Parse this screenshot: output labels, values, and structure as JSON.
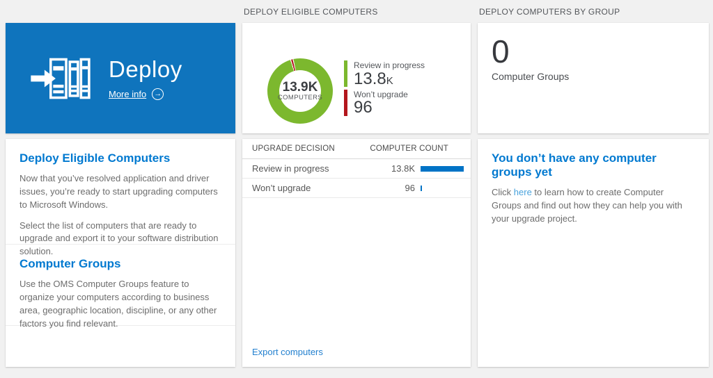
{
  "colors": {
    "tile_blue": "#0f74bd",
    "heading_blue": "#0079d0",
    "green": "#7cb82e",
    "red": "#b3161d",
    "bar_blue": "#0073c6",
    "gap_white": "#ffffff"
  },
  "left_column": {
    "tile": {
      "title": "Deploy",
      "more_info_label": "More info"
    },
    "sections": [
      {
        "heading": "Deploy Eligible Computers",
        "p1": "Now that you’ve resolved application and driver issues, you’re ready to start upgrading computers to Microsoft Windows.",
        "p2": "Select the list of computers that are ready to upgrade and export it to your software distribution solution."
      },
      {
        "heading": "Computer Groups",
        "p1": "Use the OMS Computer Groups feature to organize your computers according to business area, geographic location, discipline, or any other factors you find relevant."
      }
    ]
  },
  "middle_column": {
    "header": "DEPLOY ELIGIBLE COMPUTERS",
    "donut": {
      "center_value": "13.9K",
      "center_label": "COMPUTERS",
      "slice": {
        "green_end": 342.5,
        "red_start": 344,
        "red_end": 346.8,
        "green_resume": 348.3
      },
      "legend": [
        {
          "label": "Review in progress",
          "value": "13.8",
          "suffix": "K",
          "color": "#7cb82e"
        },
        {
          "label": "Won’t upgrade",
          "value": "96",
          "suffix": "",
          "color": "#b3161d"
        }
      ]
    },
    "table": {
      "bar_color": "#0073c6",
      "header_left": "UPGRADE DECISION",
      "header_right": "COMPUTER COUNT",
      "rows": [
        {
          "label": "Review in progress",
          "count": "13.8K",
          "bar_pct": 100
        },
        {
          "label": "Won’t upgrade",
          "count": "96",
          "bar_pct": 0.7
        }
      ]
    },
    "export_link": "Export computers"
  },
  "right_column": {
    "header": "DEPLOY COMPUTERS BY GROUP",
    "tile": {
      "value": "0",
      "label": "Computer Groups"
    },
    "empty_state": {
      "heading": "You don’t have any computer groups yet",
      "body_prefix": "Click ",
      "link_text": "here",
      "body_suffix": " to learn how to create Computer Groups and find out how they can help you with your upgrade project."
    }
  },
  "chart_data": [
    {
      "type": "pie",
      "subtype": "donut",
      "title": "Deploy Eligible Computers",
      "center_text": [
        "13.9K",
        "COMPUTERS"
      ],
      "slices": [
        {
          "label": "Review in progress",
          "value": 13800,
          "display": "13.8K",
          "color": "#7cb82e"
        },
        {
          "label": "Won’t upgrade",
          "value": 96,
          "display": "96",
          "color": "#b3161d"
        }
      ],
      "legend_position": "right"
    },
    {
      "type": "bar",
      "title": "Upgrade Decision / Computer Count",
      "categories": [
        "Review in progress",
        "Won’t upgrade"
      ],
      "values": [
        13800,
        96
      ],
      "value_labels": [
        "13.8K",
        "96"
      ],
      "orientation": "horizontal",
      "bar_color": "#0073c6"
    }
  ]
}
